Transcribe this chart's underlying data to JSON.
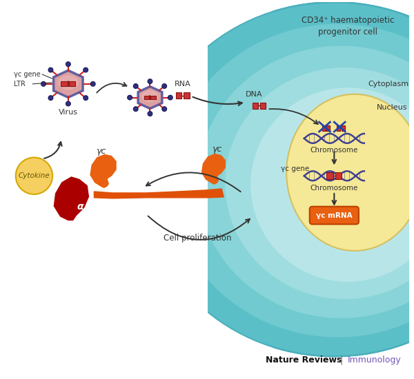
{
  "bg_color": "#ffffff",
  "cell_outer_color": "#6dc5cc",
  "cell_mid_color": "#4db0be",
  "cell_inner_color": "#8dcdd4",
  "nucleus_color": "#f5e896",
  "nucleus_edge": "#d4c060",
  "virus_body_color": "#e8a090",
  "virus_shell_color": "#6060a0",
  "virus_dot_color": "#303080",
  "gene_bar_color": "#cc3333",
  "dna_color": "#404090",
  "cytokine_color": "#f5d060",
  "cytokine_edge": "#d4a800",
  "receptor_orange": "#e86010",
  "receptor_dark": "#cc2000",
  "alpha_color": "#aa0000",
  "arrow_color": "#333333",
  "text_color": "#333333",
  "nature_reviews_color": "#111111",
  "immunology_color": "#7755bb",
  "cell_label": "CD34⁺ haematopoietic\nprogenitor cell",
  "cytoplasm_label": "Cytoplasm",
  "nucleus_label": "Nucleus",
  "virus_label": "Virus",
  "cytokine_label": "Cytokine",
  "rna_label": "RNA",
  "dna_label": "DNA",
  "chromosome_label1": "Chromosome",
  "chromosome_label2": "Chromosome",
  "gc_gene_label": "γc gene",
  "gc_mrna_label": "γc mRNA",
  "cell_prolif_label": "Cell proliferation",
  "gc_label": "γc",
  "alpha_label": "α",
  "gc_label2": "γc",
  "ltr_label": "LTR",
  "yc_gene_label": "γc gene",
  "nature_text": "Nature Reviews",
  "immunology_text": "Immunology",
  "figsize": [
    6.0,
    5.5
  ],
  "dpi": 100
}
